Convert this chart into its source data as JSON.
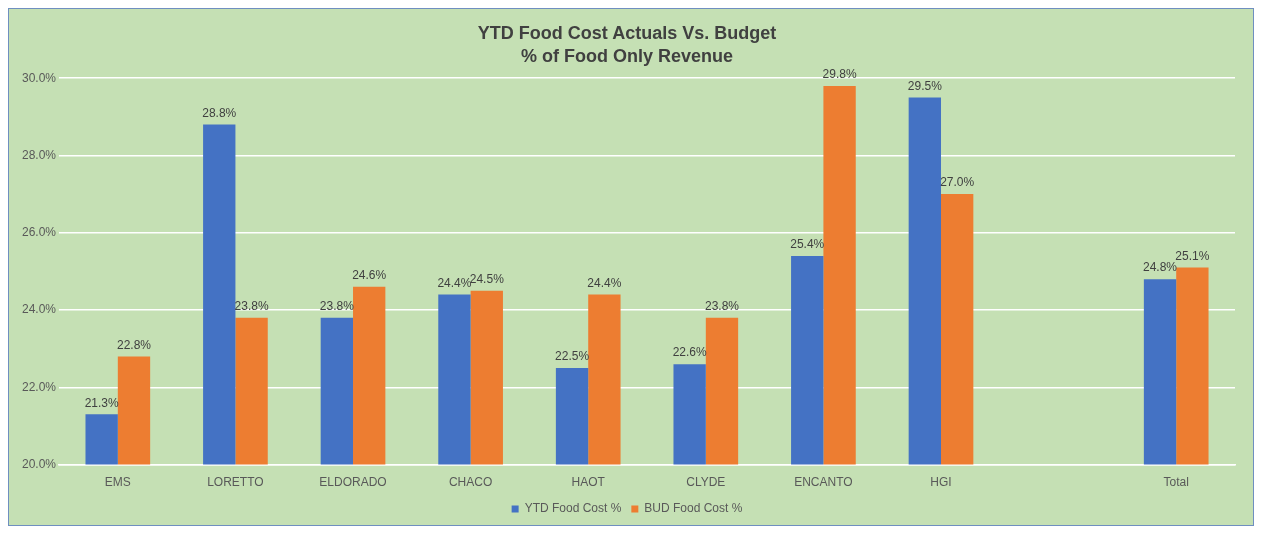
{
  "chart_data": {
    "type": "bar",
    "title": "YTD Food Cost Actuals Vs. Budget",
    "subtitle": "% of Food Only Revenue",
    "categories": [
      "EMS",
      "LORETTO",
      "ELDORADO",
      "CHACO",
      "HAOT",
      "CLYDE",
      "ENCANTO",
      "HGI",
      null,
      "Total"
    ],
    "series": [
      {
        "name": "YTD Food Cost %",
        "color": "#4472c4",
        "values": [
          21.3,
          28.8,
          23.8,
          24.4,
          22.5,
          22.6,
          25.4,
          29.5,
          null,
          24.8
        ],
        "value_labels": [
          "21.3%",
          "28.8%",
          "23.8%",
          "24.4%",
          "22.5%",
          "22.6%",
          "25.4%",
          "29.5%",
          null,
          "24.8%"
        ]
      },
      {
        "name": "BUD Food Cost %",
        "color": "#ed7d31",
        "values": [
          22.8,
          23.8,
          24.6,
          24.5,
          24.4,
          23.8,
          29.8,
          27.0,
          null,
          25.1
        ],
        "value_labels": [
          "22.8%",
          "23.8%",
          "24.6%",
          "24.5%",
          "24.4%",
          "23.8%",
          "29.8%",
          "27.0%",
          null,
          "25.1%"
        ]
      }
    ],
    "ylim": [
      20,
      30
    ],
    "yticks": [
      {
        "value": 20,
        "label": "20.0%"
      },
      {
        "value": 22,
        "label": "22.0%"
      },
      {
        "value": 24,
        "label": "24.0%"
      },
      {
        "value": 26,
        "label": "26.0%"
      },
      {
        "value": 28,
        "label": "28.0%"
      },
      {
        "value": 30,
        "label": "30.0%"
      }
    ],
    "grid": "y",
    "legend": "bottom"
  }
}
